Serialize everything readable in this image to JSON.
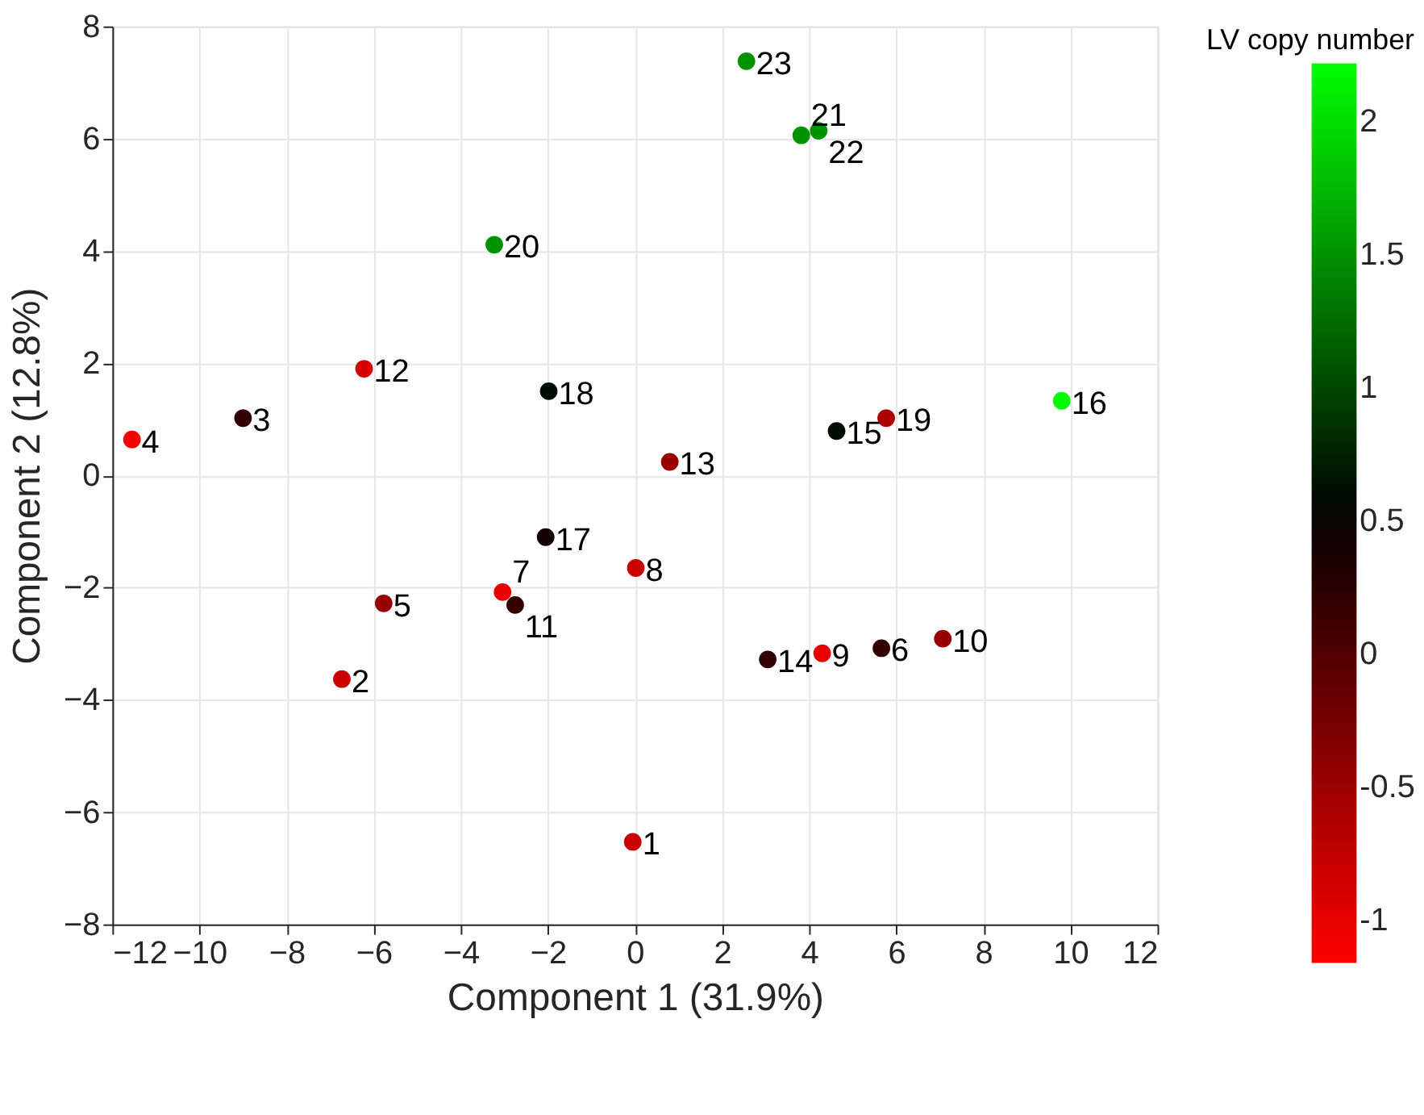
{
  "chart_data": {
    "type": "scatter",
    "xlabel": "Component 1 (31.9%)",
    "ylabel": "Component 2 (12.8%)",
    "clabel": "LV copy number",
    "x": [
      -0.05,
      -6.73,
      -9.0,
      -11.55,
      -5.77,
      5.66,
      -3.04,
      0.02,
      4.3,
      7.07,
      -2.75,
      -6.22,
      0.8,
      3.05,
      4.63,
      9.8,
      -2.05,
      -1.98,
      5.77,
      -3.23,
      3.82,
      4.22,
      2.56
    ],
    "values": [
      -6.53,
      -3.63,
      1.02,
      0.64,
      -2.28,
      -3.08,
      -2.08,
      -1.65,
      -3.17,
      -2.91,
      -2.31,
      1.9,
      0.24,
      -3.28,
      0.79,
      1.33,
      -1.1,
      1.5,
      1.02,
      4.11,
      6.06,
      6.14,
      7.38
    ],
    "cvalues": [
      -0.8,
      -0.8,
      0.2,
      -1.1,
      -0.5,
      0.2,
      -1.0,
      -0.8,
      -1.0,
      -0.5,
      0.2,
      -0.9,
      -0.5,
      0.2,
      0.6,
      2.2,
      0.4,
      0.6,
      -0.6,
      1.5,
      1.5,
      1.5,
      1.5
    ],
    "annotations": [
      {
        "text": "1",
        "x": -0.05,
        "y": -6.53
      },
      {
        "text": "2",
        "x": -6.73,
        "y": -3.63
      },
      {
        "text": "3",
        "x": -9.0,
        "y": 1.02
      },
      {
        "text": "4",
        "x": -11.55,
        "y": 0.64
      },
      {
        "text": "5",
        "x": -5.77,
        "y": -2.28
      },
      {
        "text": "6",
        "x": 5.66,
        "y": -3.08
      },
      {
        "text": "7",
        "x": -3.04,
        "y": -2.08
      },
      {
        "text": "8",
        "x": 0.02,
        "y": -1.65
      },
      {
        "text": "9",
        "x": 4.3,
        "y": -3.17
      },
      {
        "text": "10",
        "x": 7.07,
        "y": -2.91
      },
      {
        "text": "11",
        "x": -2.75,
        "y": -2.31
      },
      {
        "text": "12",
        "x": -6.22,
        "y": 1.9
      },
      {
        "text": "13",
        "x": 0.8,
        "y": 0.24
      },
      {
        "text": "14",
        "x": 3.05,
        "y": -3.28
      },
      {
        "text": "15",
        "x": 4.63,
        "y": 0.79
      },
      {
        "text": "16",
        "x": 9.8,
        "y": 1.33
      },
      {
        "text": "17",
        "x": -2.05,
        "y": -1.1
      },
      {
        "text": "18",
        "x": -1.98,
        "y": 1.5
      },
      {
        "text": "19",
        "x": 5.77,
        "y": 1.02
      },
      {
        "text": "20",
        "x": -3.23,
        "y": 4.11
      },
      {
        "text": "21",
        "x": 3.82,
        "y": 6.06
      },
      {
        "text": "22",
        "x": 4.22,
        "y": 6.14
      },
      {
        "text": "23",
        "x": 2.56,
        "y": 7.38
      }
    ],
    "xlim": [
      -12,
      12
    ],
    "xticks": [
      -12,
      -10,
      -8,
      -6,
      -4,
      -2,
      0,
      2,
      4,
      6,
      8,
      10,
      12
    ],
    "ylim": [
      -8,
      8
    ],
    "yticks": [
      -8,
      -6,
      -4,
      -2,
      0,
      2,
      4,
      6,
      8
    ],
    "clim": [
      -1.16,
      2.22
    ],
    "cticks": [
      -1,
      -0.5,
      0,
      0.5,
      1,
      1.5,
      2
    ],
    "grid": true,
    "marker": "circle"
  }
}
